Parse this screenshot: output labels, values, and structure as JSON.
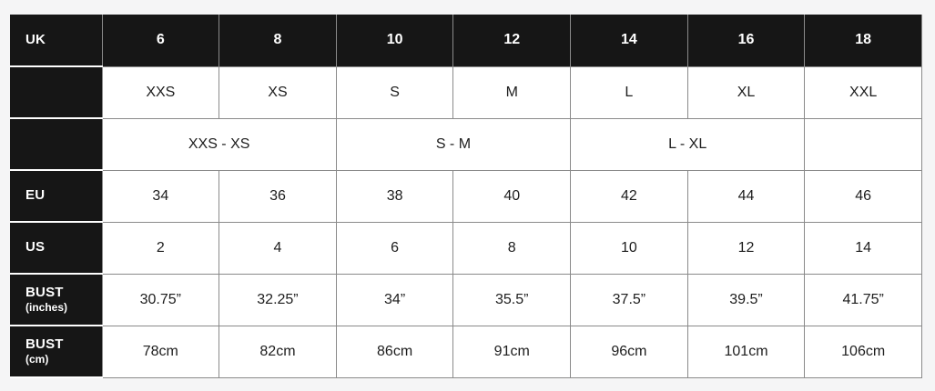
{
  "page": {
    "background": "#f5f5f6"
  },
  "table": {
    "name": "size-conversion-chart",
    "colors": {
      "header_bg": "#161616",
      "header_text": "#ffffff",
      "cell_bg": "#ffffff",
      "cell_text": "#1d1d1d",
      "grid_line": "#8a8a8a",
      "label_separator": "#ffffff"
    },
    "rows": [
      {
        "label": "UK",
        "sublabel": "",
        "header": true,
        "cells": [
          "6",
          "8",
          "10",
          "12",
          "14",
          "16",
          "18"
        ]
      },
      {
        "label": "",
        "sublabel": "",
        "header": false,
        "cells": [
          "XXS",
          "XS",
          "S",
          "M",
          "L",
          "XL",
          "XXL"
        ]
      },
      {
        "label": "",
        "sublabel": "",
        "header": false,
        "cells": [
          {
            "text": "XXS - XS",
            "span": 2
          },
          {
            "text": "S - M",
            "span": 2
          },
          {
            "text": "L - XL",
            "span": 2
          },
          {
            "text": "",
            "span": 1
          }
        ]
      },
      {
        "label": "EU",
        "sublabel": "",
        "header": false,
        "cells": [
          "34",
          "36",
          "38",
          "40",
          "42",
          "44",
          "46"
        ]
      },
      {
        "label": "US",
        "sublabel": "",
        "header": false,
        "cells": [
          "2",
          "4",
          "6",
          "8",
          "10",
          "12",
          "14"
        ]
      },
      {
        "label": "BUST",
        "sublabel": "(inches)",
        "header": false,
        "cells": [
          "30.75”",
          "32.25”",
          "34”",
          "35.5”",
          "37.5”",
          "39.5”",
          "41.75”"
        ]
      },
      {
        "label": "BUST",
        "sublabel": "(cm)",
        "header": false,
        "cells": [
          "78cm",
          "82cm",
          "86cm",
          "91cm",
          "96cm",
          "101cm",
          "106cm"
        ]
      }
    ]
  }
}
